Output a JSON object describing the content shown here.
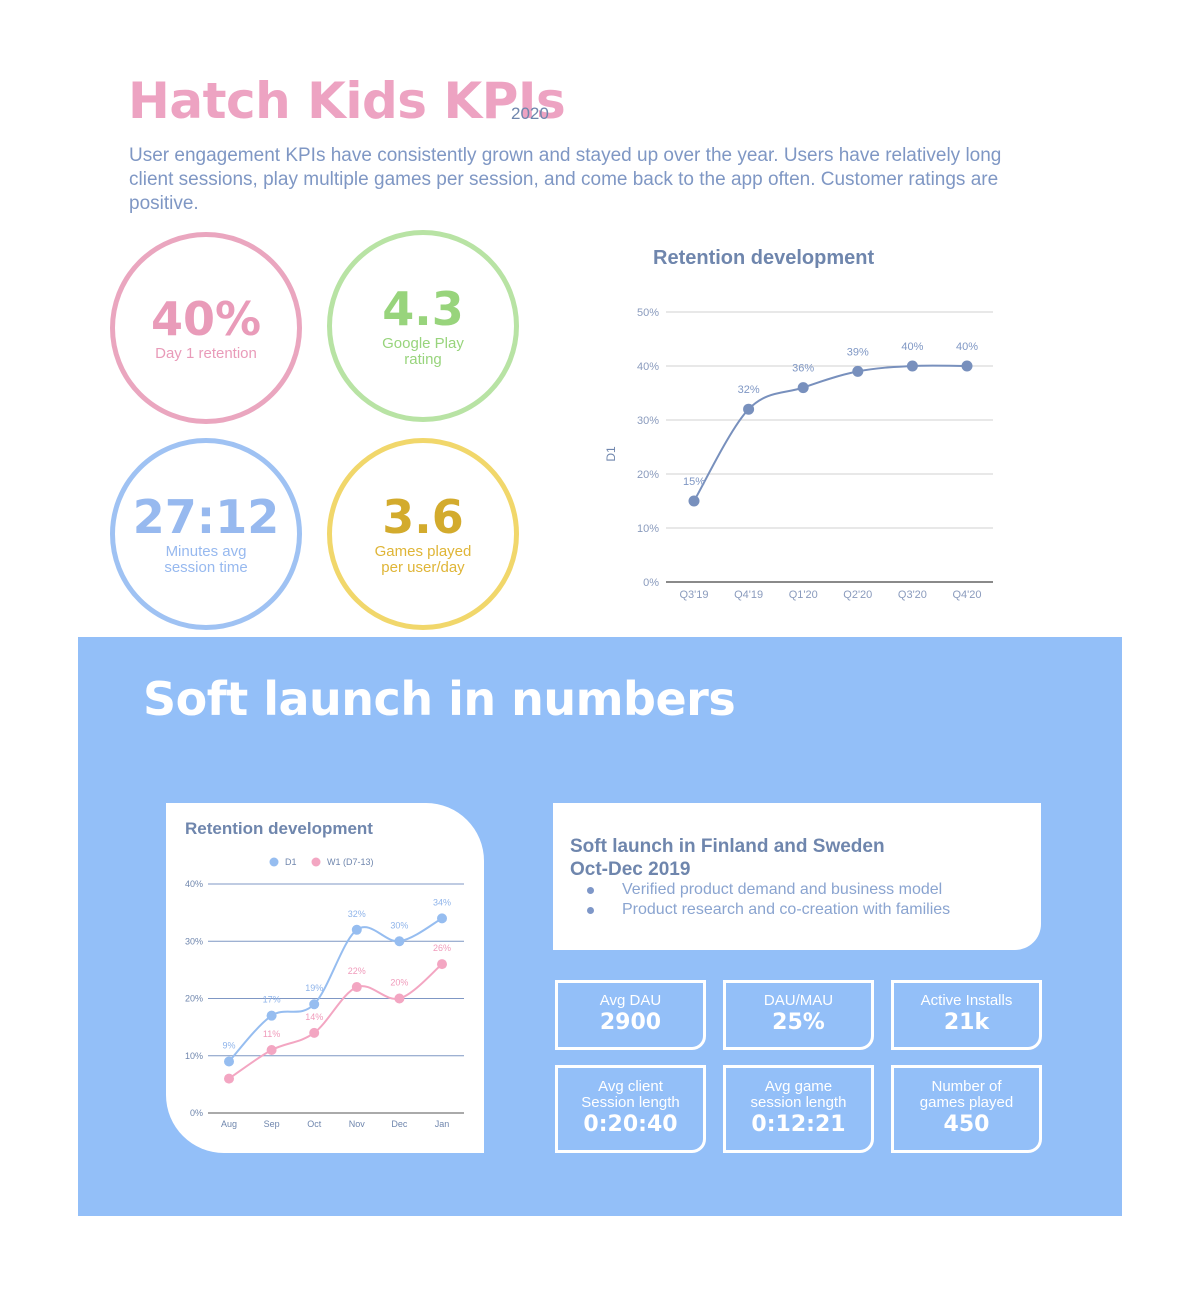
{
  "header": {
    "title": "Hatch Kids KPIs",
    "year": "2020",
    "intro": "User engagement KPIs have consistently grown and stayed up over the year. Users have relatively long client sessions, play multiple games per session, and come back to the app often. Customer ratings are positive."
  },
  "kpis": {
    "d1": {
      "value": "40%",
      "label": "Day 1 retention"
    },
    "gp": {
      "value": "4.3",
      "label_1": "Google Play",
      "label_2": "rating"
    },
    "min": {
      "value": "27:12",
      "label_1": "Minutes avg",
      "label_2": "session time"
    },
    "gm": {
      "value": "3.6",
      "label_1": "Games played",
      "label_2": "per user/day"
    }
  },
  "section": {
    "title": "Soft launch in numbers"
  },
  "launch": {
    "heading_1": "Soft launch in Finland and Sweden",
    "heading_2": "Oct-Dec 2019",
    "bullets": [
      "Verified product demand and business model",
      "Product research and co-creation with families"
    ]
  },
  "stats": [
    {
      "label_1": "Avg DAU",
      "label_2": "",
      "value": "2900"
    },
    {
      "label_1": "DAU/MAU",
      "label_2": "",
      "value": "25%"
    },
    {
      "label_1": "Active Installs",
      "label_2": "",
      "value": "21k"
    },
    {
      "label_1": "Avg client",
      "label_2": "Session length",
      "value": "0:20:40"
    },
    {
      "label_1": "Avg game",
      "label_2": "session length",
      "value": "0:12:21"
    },
    {
      "label_1": "Number of",
      "label_2": "games played",
      "value": "450"
    }
  ],
  "colors": {
    "pink": "#e99bb9",
    "green": "#98d47c",
    "blue": "#97b9ef",
    "yellow": "#d3ab2d",
    "chart_line": "#7890bd",
    "section_bg": "#93bff8",
    "d1_series": "#96bdf0",
    "w1_series": "#f3a6c2"
  },
  "chart_data": [
    {
      "type": "line",
      "title": "Retention development",
      "ylabel": "D1",
      "xlabel": "",
      "categories": [
        "Q3'19",
        "Q4'19",
        "Q1'20",
        "Q2'20",
        "Q3'20",
        "Q4'20"
      ],
      "values": [
        15,
        32,
        36,
        39,
        40,
        40
      ],
      "data_labels": [
        "15%",
        "32%",
        "36%",
        "39%",
        "40%",
        "40%"
      ],
      "ylim": [
        0,
        50
      ],
      "yticks": [
        "0%",
        "10%",
        "20%",
        "30%",
        "40%",
        "50%"
      ],
      "grid": true,
      "legend": "none"
    },
    {
      "type": "line",
      "title": "Retention development",
      "xlabel": "",
      "ylabel": "",
      "categories": [
        "Aug",
        "Sep",
        "Oct",
        "Nov",
        "Dec",
        "Jan"
      ],
      "series": [
        {
          "name": "D1",
          "values": [
            9,
            17,
            19,
            32,
            30,
            34
          ],
          "data_labels": [
            "9%",
            "17%",
            "19%",
            "32%",
            "30%",
            "34%"
          ]
        },
        {
          "name": "W1 (D7-13)",
          "values": [
            6,
            11,
            14,
            22,
            20,
            26
          ],
          "data_labels": [
            "",
            "11%",
            "14%",
            "22%",
            "20%",
            "26%"
          ]
        }
      ],
      "ylim": [
        0,
        40
      ],
      "yticks": [
        "0%",
        "10%",
        "20%",
        "30%",
        "40%"
      ],
      "grid": true,
      "legend": "top-center"
    }
  ]
}
